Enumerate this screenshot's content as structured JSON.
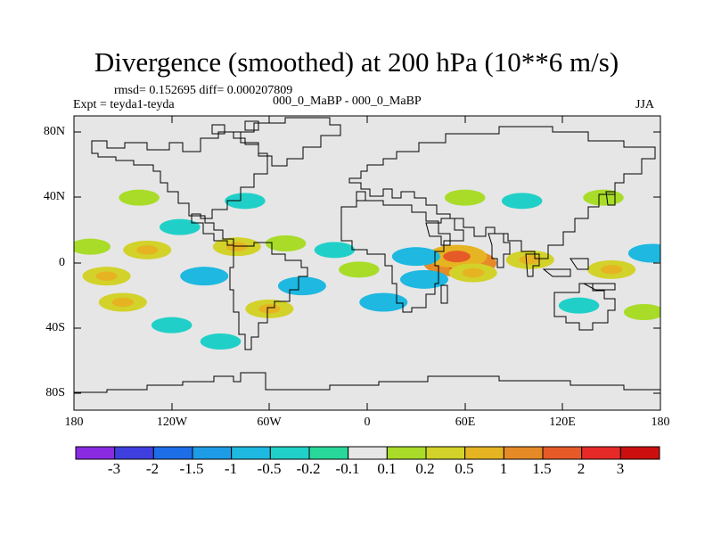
{
  "title": "Divergence (smoothed) at 200 hPa (10**6 m/s)",
  "stats": "rmsd= 0.152695  diff= 0.000207809",
  "experiment": "Expt = teyda1-teyda",
  "comparison": "000_0_MaBP - 000_0_MaBP",
  "season": "JJA",
  "lat_labels": [
    "80N",
    "40N",
    "0",
    "40S",
    "80S"
  ],
  "lon_labels": [
    "180",
    "120W",
    "60W",
    "0",
    "60E",
    "120E",
    "180"
  ],
  "colorbar": {
    "labels": [
      "-3",
      "-2",
      "-1.5",
      "-1",
      "-0.5",
      "-0.2",
      "-0.1",
      "0.1",
      "0.2",
      "0.5",
      "1",
      "1.5",
      "2",
      "3"
    ],
    "colors": [
      "#8a2be2",
      "#3f3fe0",
      "#1e6ee8",
      "#1e9ce6",
      "#1eb8e0",
      "#20d0c8",
      "#28d89a",
      "#e6e6e6",
      "#a8dc28",
      "#d2d22a",
      "#e6b422",
      "#e68a28",
      "#e65a28",
      "#e62a28",
      "#cc1010"
    ]
  },
  "chart_data": {
    "type": "heatmap",
    "title": "Divergence (smoothed) at 200 hPa (10**6 m/s)",
    "variable": "Divergence",
    "units": "10**6 m/s",
    "level": "200 hPa",
    "season": "JJA",
    "xlim": [
      -180,
      180
    ],
    "ylim": [
      -90,
      90
    ],
    "levels": [
      -3,
      -2,
      -1.5,
      -1,
      -0.5,
      -0.2,
      -0.1,
      0.1,
      0.2,
      0.5,
      1,
      1.5,
      2,
      3
    ],
    "features": [
      {
        "lon": 57,
        "lat": 0,
        "value": 1.5
      },
      {
        "lon": 55,
        "lat": 4,
        "value": 1.0
      },
      {
        "lon": 65,
        "lat": -6,
        "value": 0.5
      },
      {
        "lon": 30,
        "lat": 4,
        "value": -0.5
      },
      {
        "lon": 35,
        "lat": -10,
        "value": -0.5
      },
      {
        "lon": 100,
        "lat": 2,
        "value": 0.5
      },
      {
        "lon": 150,
        "lat": -4,
        "value": 0.5
      },
      {
        "lon": 175,
        "lat": 6,
        "value": -0.5
      },
      {
        "lon": -160,
        "lat": -8,
        "value": 0.5
      },
      {
        "lon": -150,
        "lat": -24,
        "value": 0.5
      },
      {
        "lon": -170,
        "lat": 10,
        "value": 0.2
      },
      {
        "lon": -135,
        "lat": 8,
        "value": 0.5
      },
      {
        "lon": -115,
        "lat": 22,
        "value": -0.2
      },
      {
        "lon": -80,
        "lat": 10,
        "value": 0.5
      },
      {
        "lon": -100,
        "lat": -8,
        "value": -0.5
      },
      {
        "lon": -60,
        "lat": -28,
        "value": 0.5
      },
      {
        "lon": -50,
        "lat": 12,
        "value": 0.2
      },
      {
        "lon": -40,
        "lat": -14,
        "value": -0.5
      },
      {
        "lon": -20,
        "lat": 8,
        "value": -0.2
      },
      {
        "lon": -5,
        "lat": -4,
        "value": 0.2
      },
      {
        "lon": 10,
        "lat": -24,
        "value": -0.5
      },
      {
        "lon": -120,
        "lat": -38,
        "value": -0.2
      },
      {
        "lon": -90,
        "lat": -48,
        "value": -0.2
      },
      {
        "lon": -140,
        "lat": 40,
        "value": 0.2
      },
      {
        "lon": -75,
        "lat": 38,
        "value": -0.2
      },
      {
        "lon": 60,
        "lat": 40,
        "value": 0.2
      },
      {
        "lon": 95,
        "lat": 38,
        "value": -0.2
      },
      {
        "lon": 145,
        "lat": 40,
        "value": 0.2
      },
      {
        "lon": 170,
        "lat": -30,
        "value": 0.2
      },
      {
        "lon": 130,
        "lat": -26,
        "value": -0.2
      }
    ]
  }
}
